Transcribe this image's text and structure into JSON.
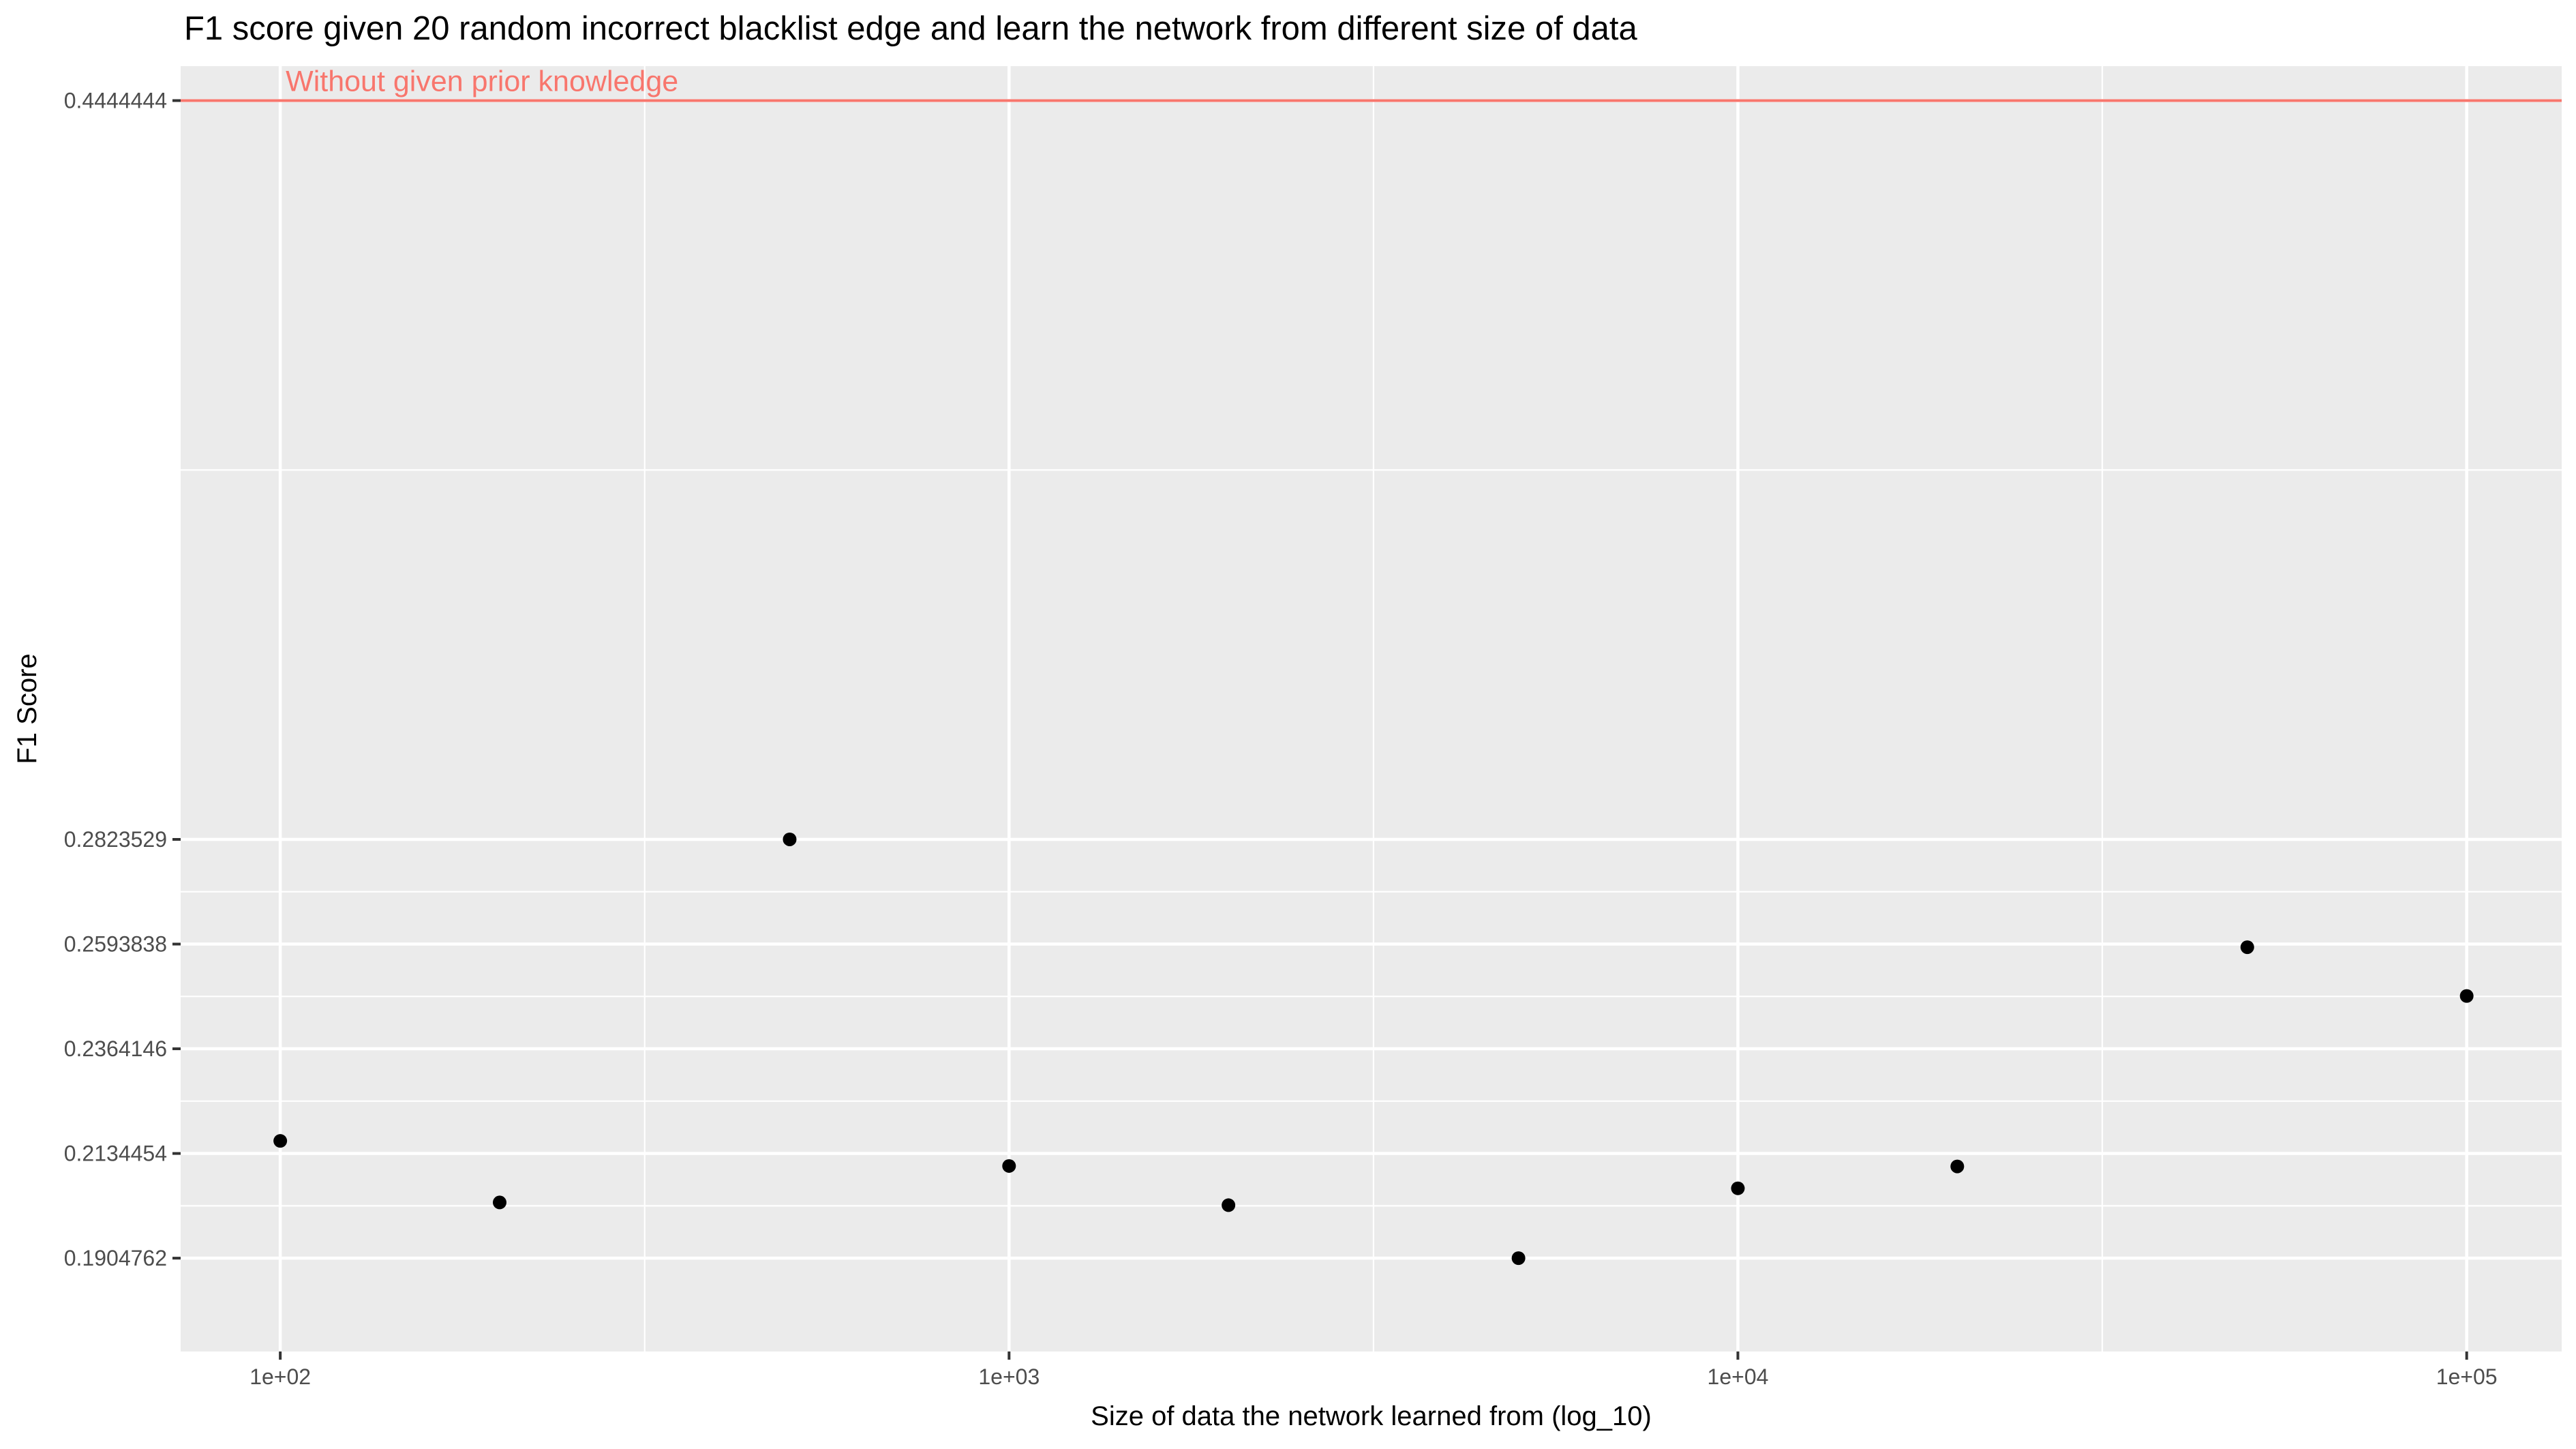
{
  "chart_data": {
    "type": "scatter",
    "title": "F1 score given 20 random incorrect blacklist edge and learn the network from different size of data",
    "xlabel": "Size of data the network learned from (log_10)",
    "ylabel": "F1 Score",
    "x_scale": "log10",
    "xlim": [
      73,
      135000
    ],
    "ylim": [
      0.17,
      0.452
    ],
    "x_ticks": [
      100,
      1000,
      10000,
      100000
    ],
    "x_tick_labels": [
      "1e+02",
      "1e+03",
      "1e+04",
      "1e+05"
    ],
    "y_ticks": [
      0.1904762,
      0.2134454,
      0.2364146,
      0.2593838,
      0.2823529,
      0.4444444
    ],
    "y_tick_labels": [
      "0.1904762",
      "0.2134454",
      "0.2364146",
      "0.2593838",
      "0.2823529",
      "0.4444444"
    ],
    "grid": true,
    "series": [
      {
        "x": [
          100,
          200,
          500,
          1000,
          2000,
          5000,
          10000,
          20000,
          50000,
          100000
        ],
        "y": [
          0.2162,
          0.2027,
          0.2823529,
          0.2107,
          0.2021,
          0.1904762,
          0.2058,
          0.2106,
          0.2587,
          0.248
        ]
      }
    ],
    "hline": {
      "y": 0.4444444,
      "label": "Without given prior knowledge",
      "color": "#F8766D"
    },
    "colors": {
      "panel_background": "#EBEBEB",
      "grid_line": "#FFFFFF",
      "point": "#000000",
      "axis_text": "#4D4D4D",
      "title_text": "#000000"
    }
  }
}
